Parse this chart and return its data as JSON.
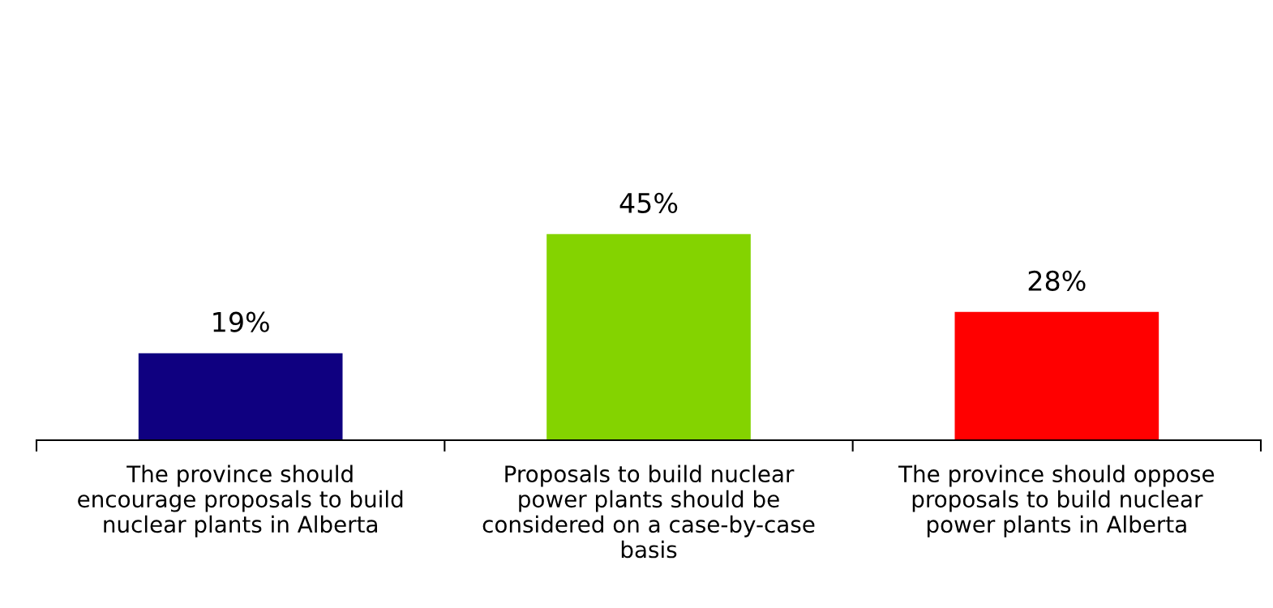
{
  "chart_data": {
    "type": "bar",
    "categories": [
      "The province should\nencourage proposals to build\nnuclear plants in Alberta",
      "Proposals to build nuclear\npower plants should be\nconsidered on a case-by-case\nbasis",
      "The province should oppose\nproposals to build nuclear\npower plants in Alberta"
    ],
    "values": [
      19,
      45,
      28
    ],
    "colors": [
      "#0f0080",
      "#84d300",
      "#ff0000"
    ],
    "value_labels": [
      "19%",
      "45%",
      "28%"
    ]
  }
}
